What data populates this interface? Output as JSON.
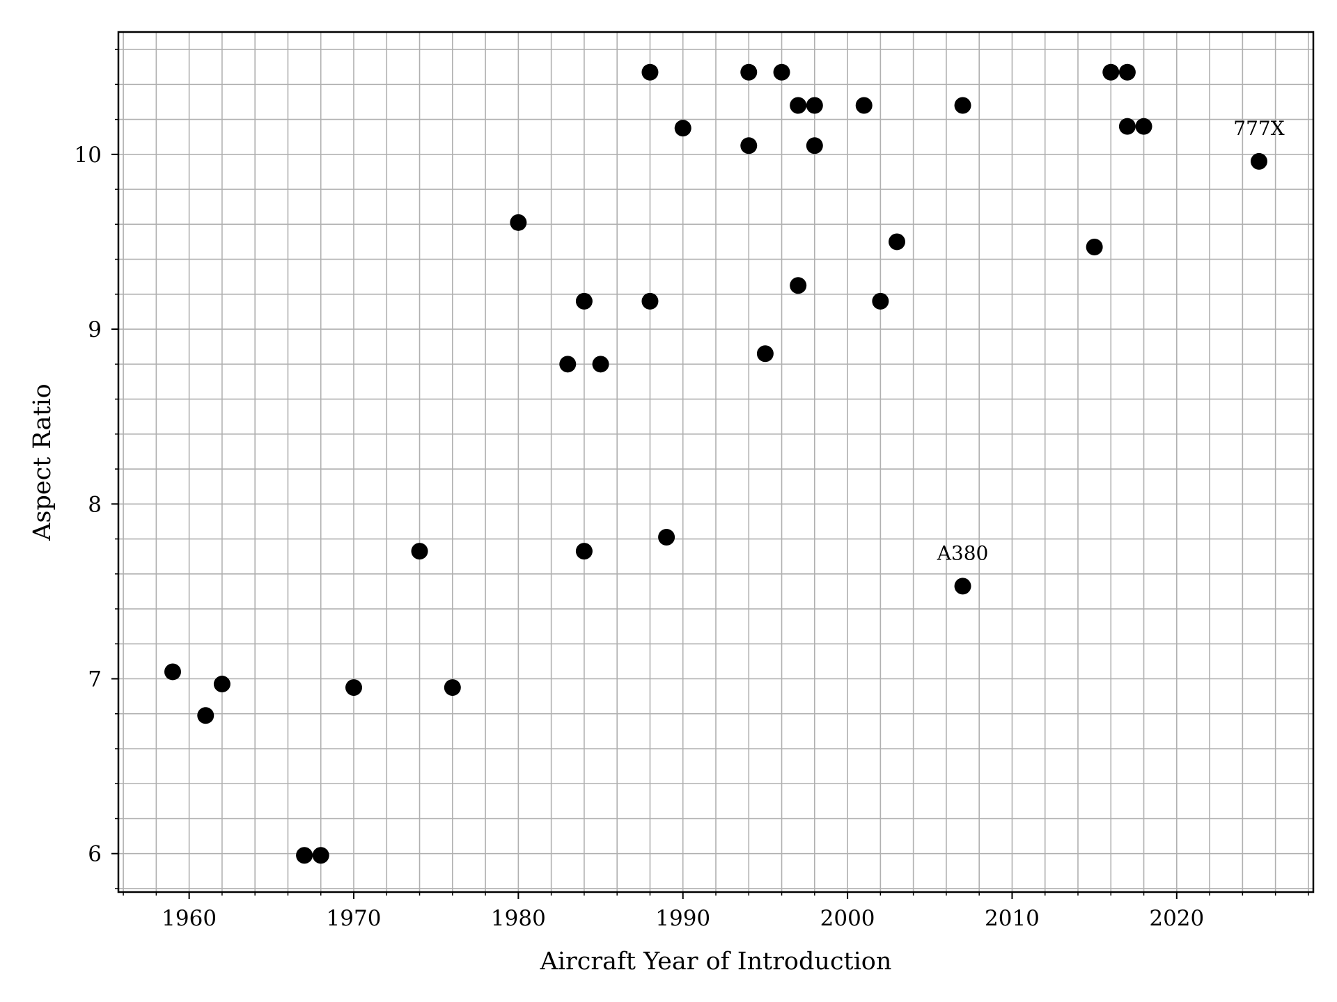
{
  "chart_data": {
    "type": "scatter",
    "title": "",
    "xlabel": "Aircraft Year of Introduction",
    "ylabel": "Aspect Ratio",
    "xlim": [
      1955.7,
      2028.3
    ],
    "ylim": [
      5.78,
      10.7
    ],
    "x_ticks": [
      1960,
      1970,
      1980,
      1990,
      2000,
      2010,
      2020
    ],
    "x_tick_labels": [
      "1960",
      "1970",
      "1980",
      "1990",
      "2000",
      "2010",
      "2020"
    ],
    "y_ticks": [
      6,
      7,
      8,
      9,
      10
    ],
    "y_tick_labels": [
      "6",
      "7",
      "8",
      "9",
      "10"
    ],
    "x_minor_step": 2,
    "y_minor_step": 0.2,
    "grid": true,
    "legend": "none",
    "marker_color": "#000000",
    "grid_color": "#b0b0b0",
    "series": [
      {
        "points": [
          {
            "x": 1959,
            "y": 7.04
          },
          {
            "x": 1961,
            "y": 6.79
          },
          {
            "x": 1962,
            "y": 6.97
          },
          {
            "x": 1967,
            "y": 5.99
          },
          {
            "x": 1968,
            "y": 5.99
          },
          {
            "x": 1970,
            "y": 6.95
          },
          {
            "x": 1974,
            "y": 7.73
          },
          {
            "x": 1976,
            "y": 6.95
          },
          {
            "x": 1980,
            "y": 9.61
          },
          {
            "x": 1983,
            "y": 8.8
          },
          {
            "x": 1984,
            "y": 9.16
          },
          {
            "x": 1984,
            "y": 7.73
          },
          {
            "x": 1985,
            "y": 8.8
          },
          {
            "x": 1988,
            "y": 10.47
          },
          {
            "x": 1988,
            "y": 9.16
          },
          {
            "x": 1989,
            "y": 7.81
          },
          {
            "x": 1990,
            "y": 10.15
          },
          {
            "x": 1994,
            "y": 10.47
          },
          {
            "x": 1994,
            "y": 10.05
          },
          {
            "x": 1995,
            "y": 8.86
          },
          {
            "x": 1996,
            "y": 10.47
          },
          {
            "x": 1997,
            "y": 10.28
          },
          {
            "x": 1997,
            "y": 9.25
          },
          {
            "x": 1998,
            "y": 10.28
          },
          {
            "x": 1998,
            "y": 10.05
          },
          {
            "x": 2001,
            "y": 10.28
          },
          {
            "x": 2002,
            "y": 9.16
          },
          {
            "x": 2003,
            "y": 9.5
          },
          {
            "x": 2007,
            "y": 10.28
          },
          {
            "x": 2007,
            "y": 7.53
          },
          {
            "x": 2015,
            "y": 9.47
          },
          {
            "x": 2016,
            "y": 10.47
          },
          {
            "x": 2017,
            "y": 10.47
          },
          {
            "x": 2017,
            "y": 10.16
          },
          {
            "x": 2018,
            "y": 10.16
          },
          {
            "x": 2025,
            "y": 9.96
          }
        ]
      }
    ],
    "annotations": [
      {
        "text": "A380",
        "x": 2007,
        "y": 7.53,
        "position": "above"
      },
      {
        "text": "777X",
        "x": 2025,
        "y": 9.96,
        "position": "above"
      }
    ]
  }
}
